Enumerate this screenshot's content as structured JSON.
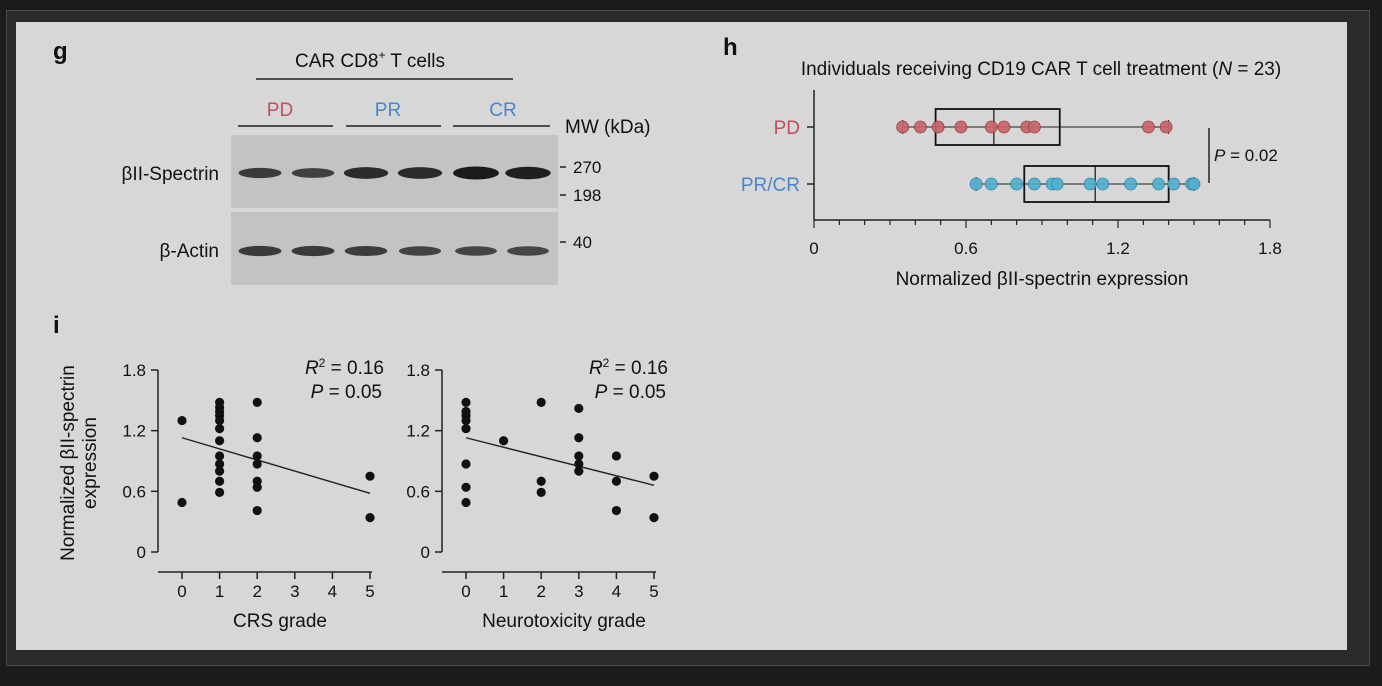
{
  "colors": {
    "pd": "#c0505a",
    "prcr": "#4a86c8",
    "pd_fill": "#c9656b",
    "prcr_fill": "#4fb0d0",
    "dot": "#111111"
  },
  "panel_g": {
    "letter": "g",
    "header_prefix": "CAR CD8",
    "header_sup": "+",
    "header_suffix": " T cells",
    "groups": [
      "PD",
      "PR",
      "CR"
    ],
    "mw_label": "MW (kDa)",
    "bands": [
      {
        "label": "βII-Spectrin",
        "markers": [
          "270",
          "198"
        ],
        "intensities": [
          0.7,
          0.65,
          0.85,
          0.85,
          1.0,
          0.95
        ]
      },
      {
        "label": "β-Actin",
        "markers": [
          "40"
        ],
        "intensities": [
          0.7,
          0.7,
          0.68,
          0.62,
          0.6,
          0.6
        ]
      }
    ]
  },
  "chart_data": [
    {
      "panel": "h",
      "type": "boxplot",
      "title_prefix": "Individuals receiving CD19 CAR T cell treatment (",
      "title_italic": "N",
      "title_suffix": " = 23)",
      "xlabel": "Normalized βII-spectrin expression",
      "xlim": [
        0,
        1.8
      ],
      "xticks": [
        0,
        0.6,
        1.2,
        1.8
      ],
      "xtick_labels": [
        "0",
        "0.6",
        "1.2",
        "1.8"
      ],
      "categories": [
        "PD",
        "PR/CR"
      ],
      "series": [
        {
          "name": "PD",
          "box": {
            "q1": 0.48,
            "median": 0.71,
            "q3": 0.97,
            "whisker_low": 0.35,
            "whisker_high": 1.4
          },
          "points": [
            0.35,
            0.42,
            0.49,
            0.58,
            0.7,
            0.75,
            0.84,
            0.87,
            1.32,
            1.39
          ]
        },
        {
          "name": "PR/CR",
          "box": {
            "q1": 0.83,
            "median": 1.11,
            "q3": 1.4,
            "whisker_low": 0.64,
            "whisker_high": 1.5
          },
          "points": [
            0.64,
            0.7,
            0.8,
            0.87,
            0.94,
            0.96,
            1.09,
            1.14,
            1.25,
            1.36,
            1.42,
            1.49,
            1.5
          ]
        }
      ],
      "annotation": {
        "italic": "P",
        "text": " = 0.02"
      }
    },
    {
      "panel": "i",
      "type": "scatter",
      "ylabel_lines": [
        "Normalized βII-spectrin",
        "expression"
      ],
      "xlabel": "CRS grade",
      "xlim": [
        0,
        5
      ],
      "ylim": [
        0,
        1.8
      ],
      "xticks": [
        "0",
        "1",
        "2",
        "3",
        "4",
        "5"
      ],
      "yticks": [
        "0",
        "0.6",
        "1.2",
        "1.8"
      ],
      "points": [
        [
          0,
          1.3
        ],
        [
          0,
          0.49
        ],
        [
          1,
          1.48
        ],
        [
          1,
          1.43
        ],
        [
          1,
          1.39
        ],
        [
          1,
          1.35
        ],
        [
          1,
          1.3
        ],
        [
          1,
          1.22
        ],
        [
          1,
          1.1
        ],
        [
          1,
          0.95
        ],
        [
          1,
          0.87
        ],
        [
          1,
          0.8
        ],
        [
          1,
          0.7
        ],
        [
          1,
          0.59
        ],
        [
          2,
          1.48
        ],
        [
          2,
          1.13
        ],
        [
          2,
          0.95
        ],
        [
          2,
          0.87
        ],
        [
          2,
          0.7
        ],
        [
          2,
          0.64
        ],
        [
          2,
          0.41
        ],
        [
          5,
          0.75
        ],
        [
          5,
          0.34
        ]
      ],
      "trendline": [
        [
          0,
          1.13
        ],
        [
          5,
          0.58
        ]
      ],
      "stats": {
        "r_label": "R",
        "r_sup": "2",
        "r_text": " = 0.16",
        "p_label": "P",
        "p_text": " = 0.05"
      }
    },
    {
      "panel": "i",
      "type": "scatter",
      "xlabel": "Neurotoxicity grade",
      "xlim": [
        0,
        5
      ],
      "ylim": [
        0,
        1.8
      ],
      "xticks": [
        "0",
        "1",
        "2",
        "3",
        "4",
        "5"
      ],
      "yticks": [
        "0",
        "0.6",
        "1.2",
        "1.8"
      ],
      "points": [
        [
          0,
          1.48
        ],
        [
          0,
          1.39
        ],
        [
          0,
          1.35
        ],
        [
          0,
          1.3
        ],
        [
          0,
          1.22
        ],
        [
          0,
          0.87
        ],
        [
          0,
          0.64
        ],
        [
          0,
          0.49
        ],
        [
          1,
          1.1
        ],
        [
          2,
          1.48
        ],
        [
          2,
          0.7
        ],
        [
          2,
          0.59
        ],
        [
          3,
          1.42
        ],
        [
          3,
          1.13
        ],
        [
          3,
          0.95
        ],
        [
          3,
          0.87
        ],
        [
          3,
          0.8
        ],
        [
          4,
          0.95
        ],
        [
          4,
          0.7
        ],
        [
          4,
          0.41
        ],
        [
          5,
          0.75
        ],
        [
          5,
          0.34
        ]
      ],
      "trendline": [
        [
          0,
          1.13
        ],
        [
          5,
          0.66
        ]
      ],
      "stats": {
        "r_label": "R",
        "r_sup": "2",
        "r_text": " = 0.16",
        "p_label": "P",
        "p_text": " = 0.05"
      }
    }
  ],
  "panel_letters": {
    "h": "h",
    "i": "i"
  }
}
